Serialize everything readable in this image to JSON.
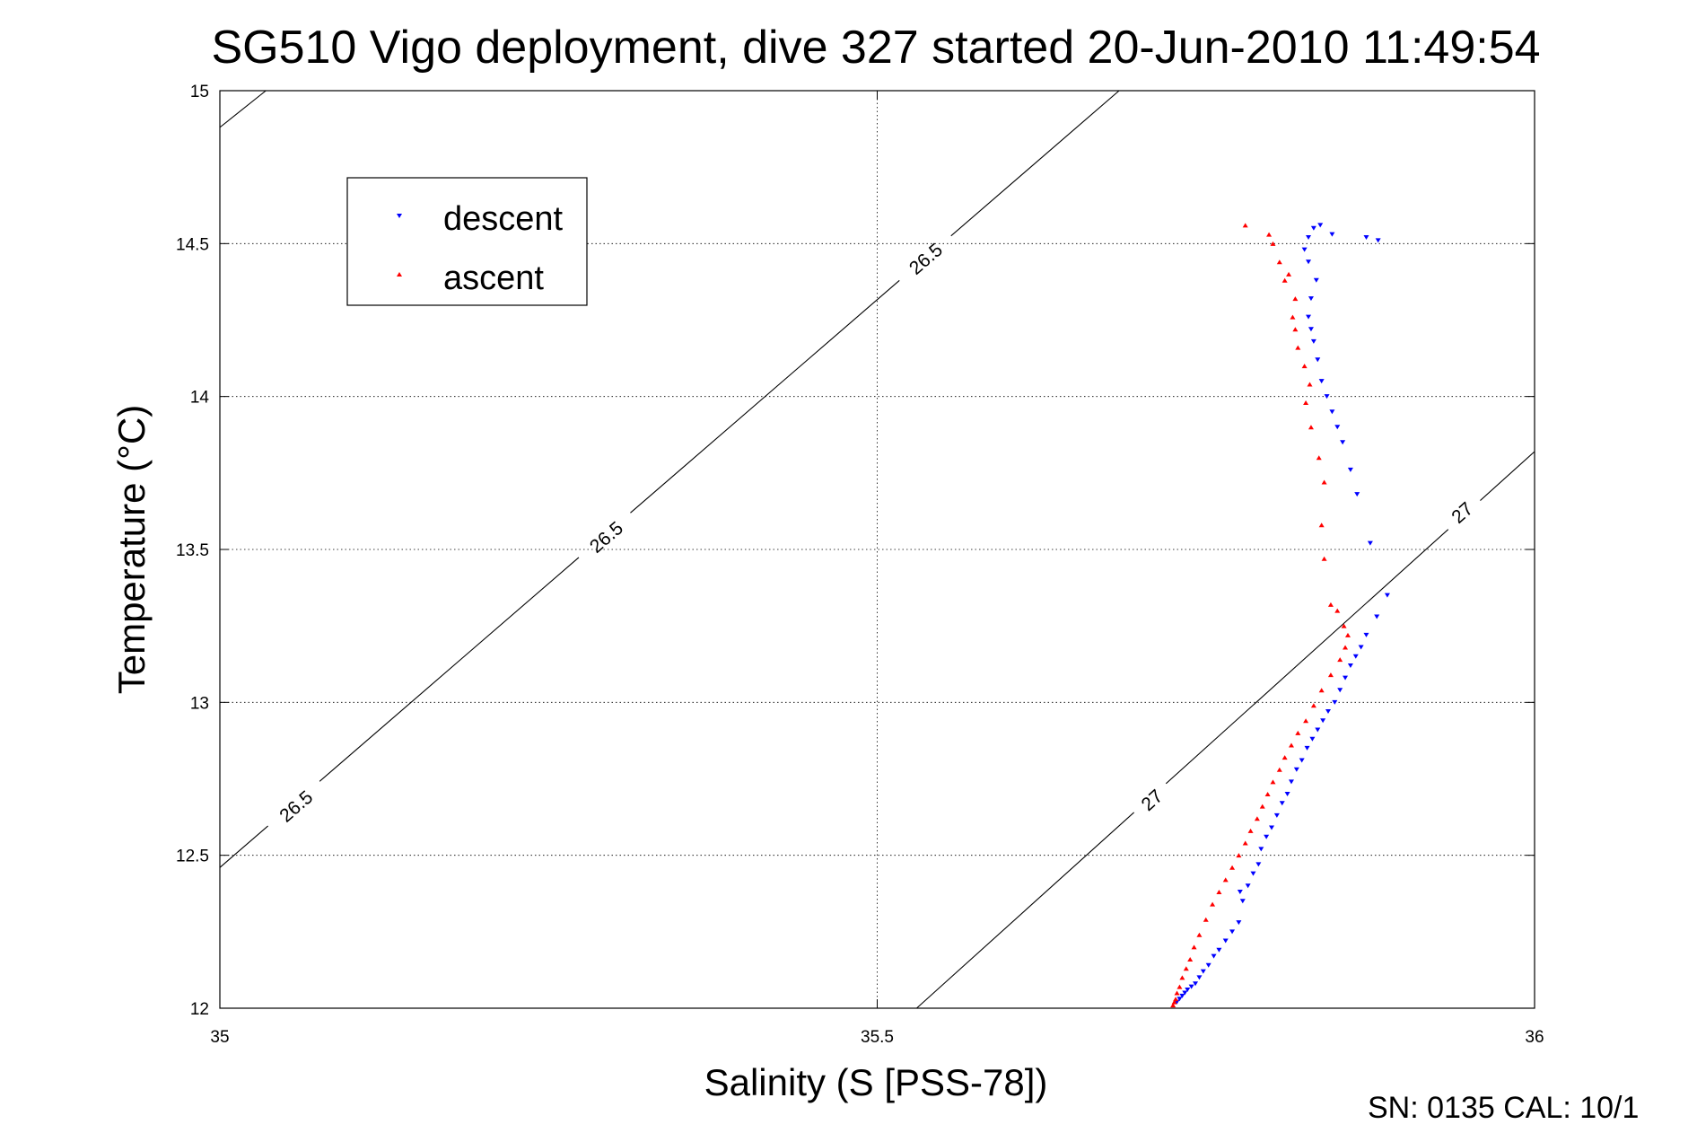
{
  "chart_data": {
    "type": "scatter",
    "title": "SG510 Vigo deployment, dive 327 started 20-Jun-2010 11:49:54",
    "xlabel": "Salinity (S [PSS-78])",
    "ylabel": "Temperature (°C)",
    "xlim": [
      35,
      36
    ],
    "ylim": [
      12,
      15
    ],
    "x_ticks": [
      35,
      35.5,
      36
    ],
    "y_ticks": [
      12,
      12.5,
      13,
      13.5,
      14,
      14.5,
      15
    ],
    "x_tick_labels": [
      "35",
      "35.5",
      "36"
    ],
    "y_tick_labels": [
      "12",
      "12.5",
      "13",
      "13.5",
      "14",
      "14.5",
      "15"
    ],
    "grid": true,
    "legend_position": "top-left",
    "density_contours": [
      {
        "label": "26.5",
        "color": "#000000",
        "points": [
          [
            35.0,
            14.88
          ],
          [
            35.035,
            15.0
          ]
        ],
        "labels": []
      },
      {
        "label": "26.5",
        "color": "#000000",
        "points": [
          [
            35.0,
            12.46
          ],
          [
            35.684,
            15.0
          ]
        ],
        "labels": [
          {
            "text": "26.5",
            "at": [
              35.058,
              12.66
            ]
          },
          {
            "text": "26.5",
            "at": [
              35.294,
              13.54
            ]
          },
          {
            "text": "26.5",
            "at": [
              35.537,
              14.45
            ]
          }
        ]
      },
      {
        "label": "27",
        "color": "#000000",
        "points": [
          [
            35.53,
            12.0
          ],
          [
            36.0,
            13.82
          ]
        ],
        "labels": [
          {
            "text": "27",
            "at": [
              35.709,
              12.68
            ]
          },
          {
            "text": "27",
            "at": [
              35.945,
              13.62
            ]
          }
        ]
      }
    ],
    "series": [
      {
        "name": "descent",
        "color": "#0000ff",
        "marker": "triangle-down",
        "points": [
          [
            35.728,
            12.02
          ],
          [
            35.73,
            12.03
          ],
          [
            35.732,
            12.04
          ],
          [
            35.734,
            12.05
          ],
          [
            35.736,
            12.06
          ],
          [
            35.739,
            12.07
          ],
          [
            35.742,
            12.08
          ],
          [
            35.745,
            12.1
          ],
          [
            35.748,
            12.12
          ],
          [
            35.752,
            12.14
          ],
          [
            35.756,
            12.17
          ],
          [
            35.76,
            12.19
          ],
          [
            35.765,
            12.22
          ],
          [
            35.77,
            12.25
          ],
          [
            35.775,
            12.28
          ],
          [
            35.778,
            12.35
          ],
          [
            35.776,
            12.38
          ],
          [
            35.782,
            12.4
          ],
          [
            35.786,
            12.44
          ],
          [
            35.79,
            12.47
          ],
          [
            35.792,
            12.52
          ],
          [
            35.796,
            12.56
          ],
          [
            35.8,
            12.59
          ],
          [
            35.804,
            12.63
          ],
          [
            35.808,
            12.67
          ],
          [
            35.812,
            12.7
          ],
          [
            35.815,
            12.74
          ],
          [
            35.819,
            12.78
          ],
          [
            35.823,
            12.81
          ],
          [
            35.827,
            12.85
          ],
          [
            35.831,
            12.88
          ],
          [
            35.835,
            12.91
          ],
          [
            35.839,
            12.94
          ],
          [
            35.843,
            12.97
          ],
          [
            35.848,
            13.0
          ],
          [
            35.852,
            13.04
          ],
          [
            35.856,
            13.08
          ],
          [
            35.86,
            13.12
          ],
          [
            35.864,
            13.15
          ],
          [
            35.868,
            13.18
          ],
          [
            35.872,
            13.22
          ],
          [
            35.88,
            13.28
          ],
          [
            35.888,
            13.35
          ],
          [
            35.875,
            13.52
          ],
          [
            35.865,
            13.68
          ],
          [
            35.86,
            13.76
          ],
          [
            35.854,
            13.85
          ],
          [
            35.85,
            13.9
          ],
          [
            35.846,
            13.95
          ],
          [
            35.842,
            14.0
          ],
          [
            35.838,
            14.05
          ],
          [
            35.835,
            14.12
          ],
          [
            35.832,
            14.18
          ],
          [
            35.83,
            14.22
          ],
          [
            35.828,
            14.26
          ],
          [
            35.83,
            14.32
          ],
          [
            35.834,
            14.38
          ],
          [
            35.828,
            14.44
          ],
          [
            35.825,
            14.48
          ],
          [
            35.828,
            14.52
          ],
          [
            35.832,
            14.55
          ],
          [
            35.837,
            14.56
          ],
          [
            35.846,
            14.53
          ],
          [
            35.872,
            14.52
          ],
          [
            35.881,
            14.51
          ]
        ]
      },
      {
        "name": "ascent",
        "color": "#ff0000",
        "marker": "triangle-up",
        "points": [
          [
            35.725,
            12.01
          ],
          [
            35.726,
            12.02
          ],
          [
            35.727,
            12.03
          ],
          [
            35.728,
            12.05
          ],
          [
            35.73,
            12.07
          ],
          [
            35.732,
            12.1
          ],
          [
            35.735,
            12.13
          ],
          [
            35.738,
            12.16
          ],
          [
            35.741,
            12.2
          ],
          [
            35.745,
            12.24
          ],
          [
            35.75,
            12.29
          ],
          [
            35.755,
            12.34
          ],
          [
            35.76,
            12.38
          ],
          [
            35.765,
            12.42
          ],
          [
            35.77,
            12.46
          ],
          [
            35.775,
            12.5
          ],
          [
            35.78,
            12.54
          ],
          [
            35.784,
            12.58
          ],
          [
            35.789,
            12.62
          ],
          [
            35.793,
            12.66
          ],
          [
            35.797,
            12.7
          ],
          [
            35.801,
            12.74
          ],
          [
            35.806,
            12.78
          ],
          [
            35.81,
            12.82
          ],
          [
            35.815,
            12.86
          ],
          [
            35.82,
            12.9
          ],
          [
            35.826,
            12.94
          ],
          [
            35.832,
            12.99
          ],
          [
            35.838,
            13.04
          ],
          [
            35.845,
            13.09
          ],
          [
            35.852,
            13.14
          ],
          [
            35.856,
            13.18
          ],
          [
            35.858,
            13.22
          ],
          [
            35.855,
            13.25
          ],
          [
            35.85,
            13.3
          ],
          [
            35.845,
            13.32
          ],
          [
            35.84,
            13.47
          ],
          [
            35.838,
            13.58
          ],
          [
            35.84,
            13.72
          ],
          [
            35.836,
            13.8
          ],
          [
            35.83,
            13.9
          ],
          [
            35.826,
            13.98
          ],
          [
            35.829,
            14.04
          ],
          [
            35.825,
            14.1
          ],
          [
            35.82,
            14.16
          ],
          [
            35.818,
            14.22
          ],
          [
            35.816,
            14.26
          ],
          [
            35.818,
            14.32
          ],
          [
            35.81,
            14.38
          ],
          [
            35.813,
            14.4
          ],
          [
            35.806,
            14.44
          ],
          [
            35.801,
            14.5
          ],
          [
            35.798,
            14.53
          ],
          [
            35.78,
            14.56
          ]
        ]
      }
    ]
  },
  "legend": {
    "entries": [
      {
        "label": "descent",
        "color": "#0000ff",
        "marker": "triangle-down"
      },
      {
        "label": "ascent",
        "color": "#ff0000",
        "marker": "triangle-up"
      }
    ]
  },
  "footer": {
    "text": "SN: 0135  CAL: 10/1"
  }
}
